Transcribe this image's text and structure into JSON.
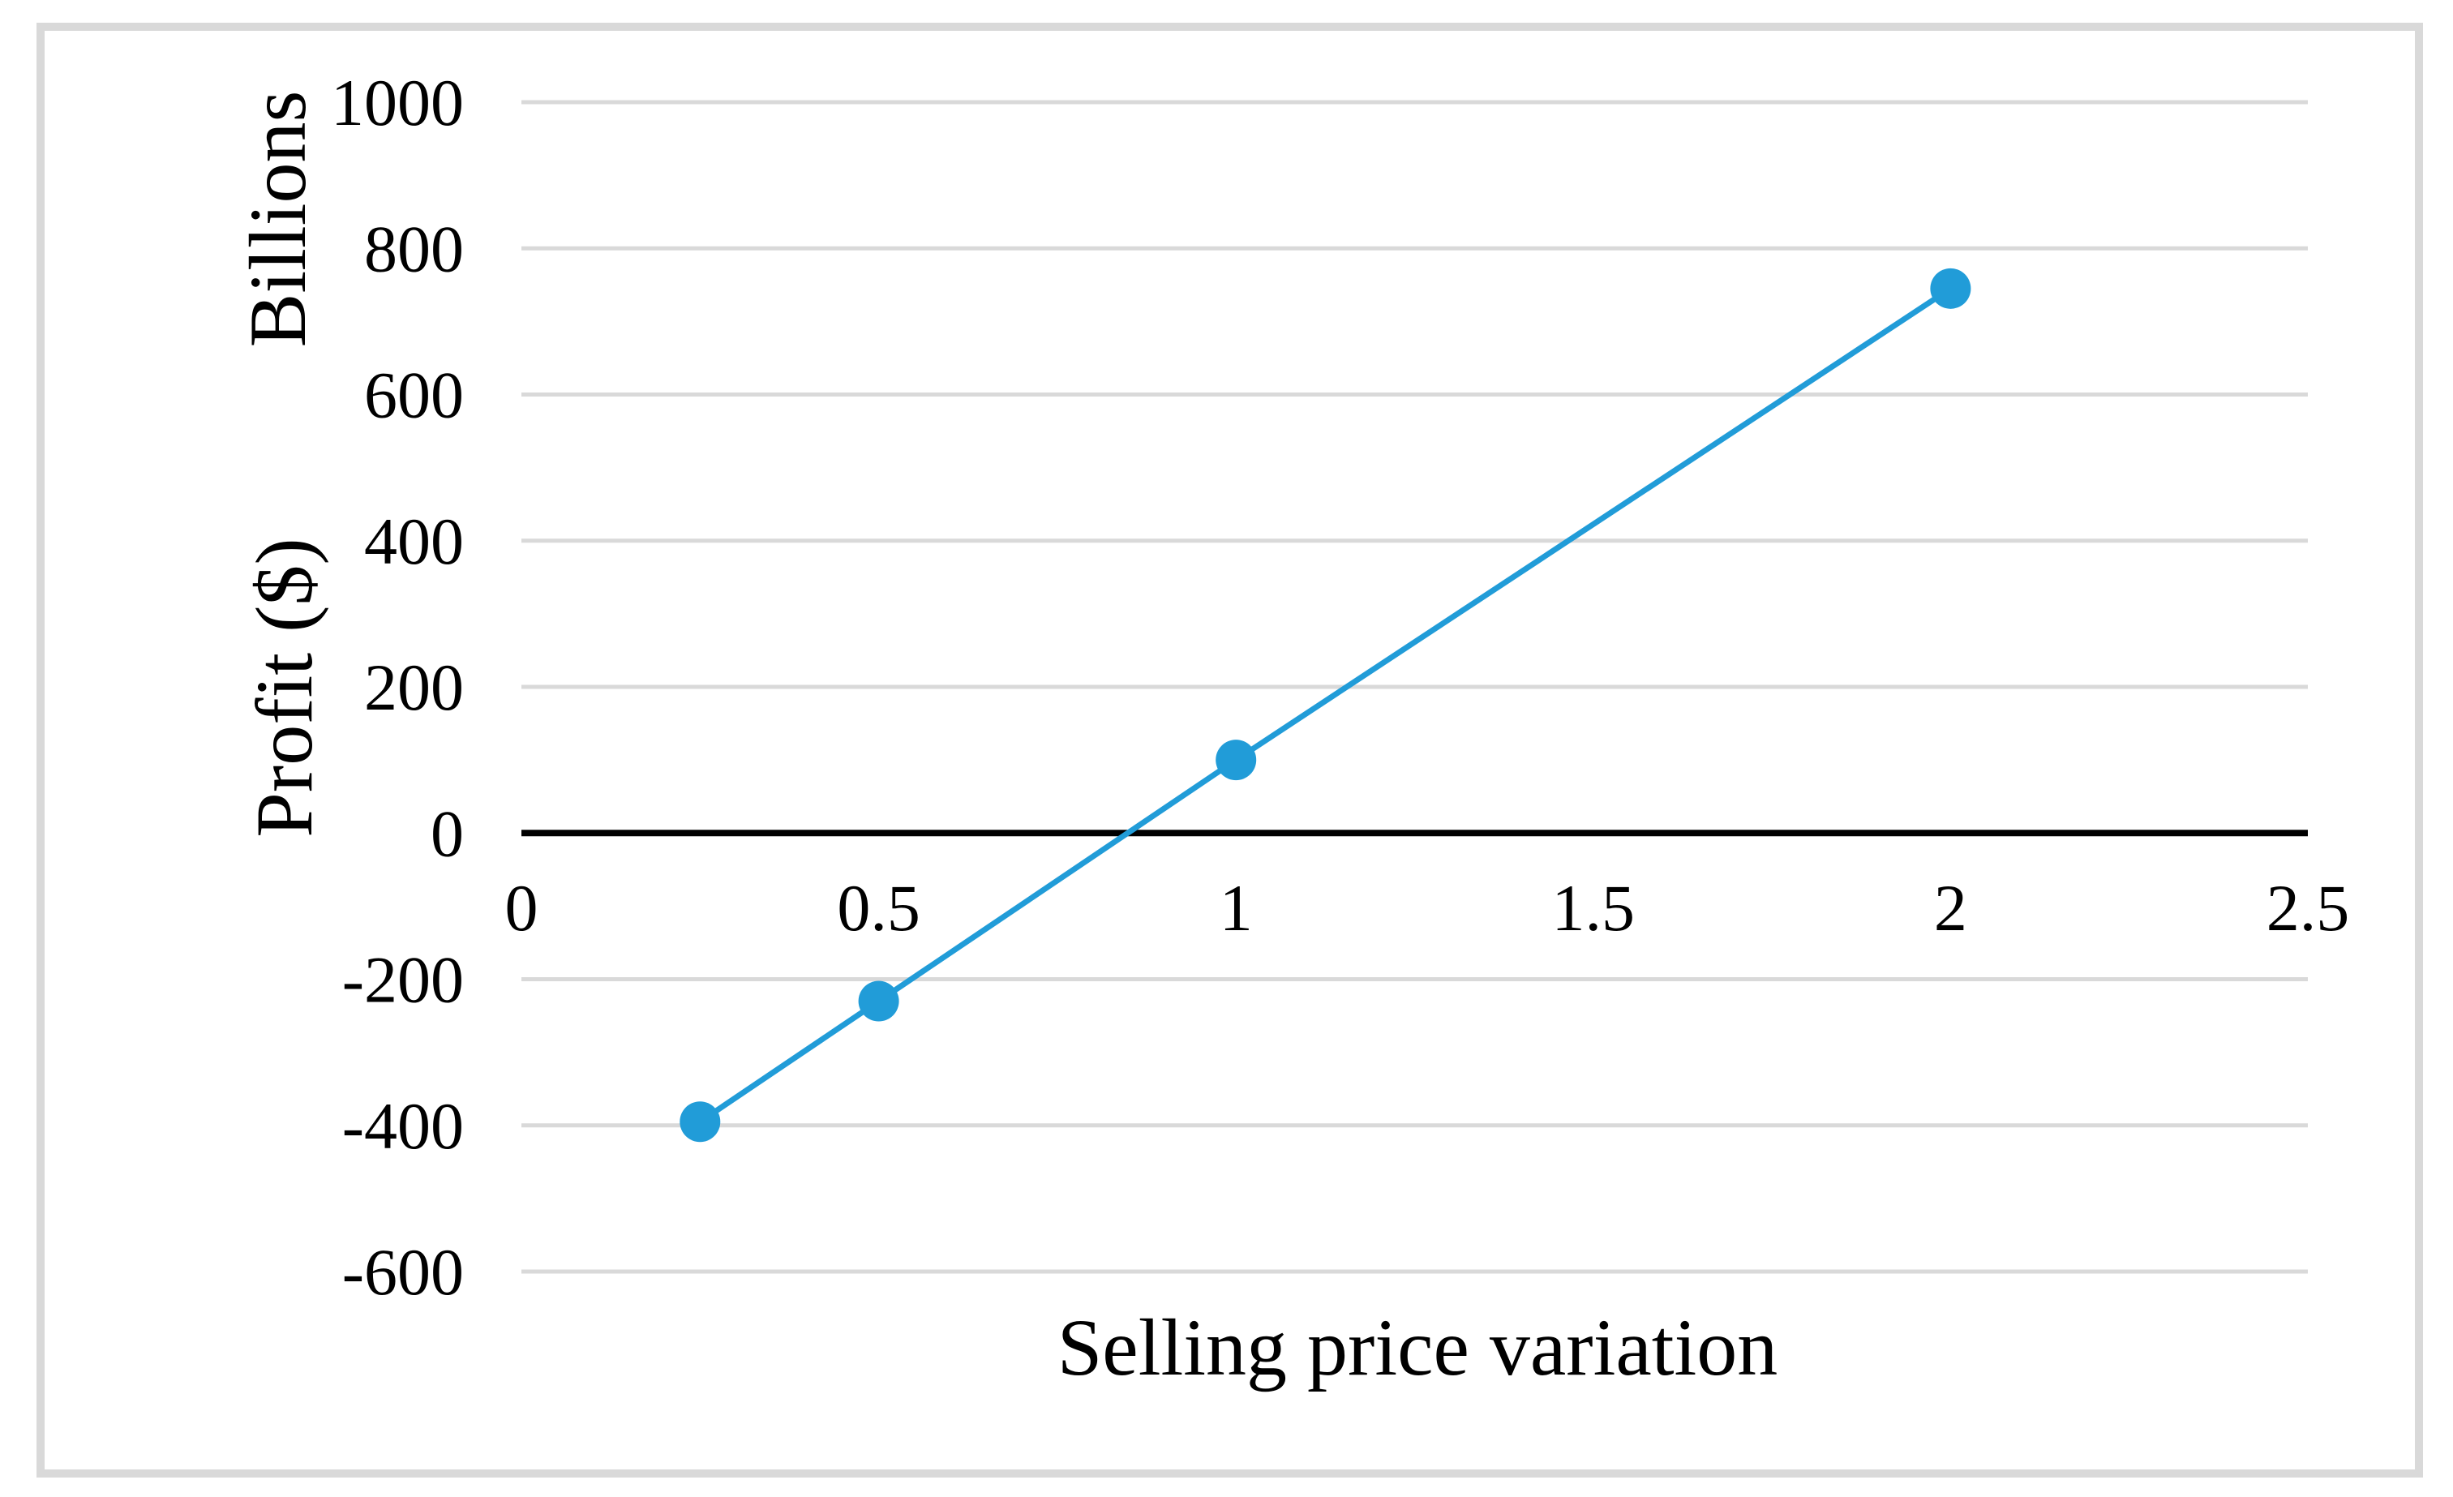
{
  "figure": {
    "background_color": "#FFFFFF",
    "frame_color": "#D9D9D9"
  },
  "chart_data": {
    "type": "line",
    "title": "",
    "xlabel": "Selling price variation",
    "ylabel": "Profit ($)",
    "y_display_units_label": "Billions",
    "x": [
      0.25,
      0.5,
      1,
      2
    ],
    "series": [
      {
        "name": "Profit",
        "values": [
          -395,
          -230,
          100,
          745
        ]
      }
    ],
    "xlim": [
      0,
      2.5
    ],
    "ylim": [
      -600,
      1000
    ],
    "x_ticks": [
      "0",
      "0.5",
      "1",
      "1.5",
      "2",
      "2.5"
    ],
    "x_tick_values": [
      0,
      0.5,
      1,
      1.5,
      2,
      2.5
    ],
    "y_ticks": [
      "1000",
      "800",
      "600",
      "400",
      "200",
      "0",
      "-200",
      "-400",
      "-600"
    ],
    "y_tick_values": [
      1000,
      800,
      600,
      400,
      200,
      0,
      -200,
      -400,
      -600
    ],
    "grid": true,
    "legend": false,
    "line_color": "#219CD8",
    "marker": "circle",
    "gridline_color": "#D9D9D9",
    "zero_axis_color": "#000000",
    "tick_label_color": "#000000"
  }
}
